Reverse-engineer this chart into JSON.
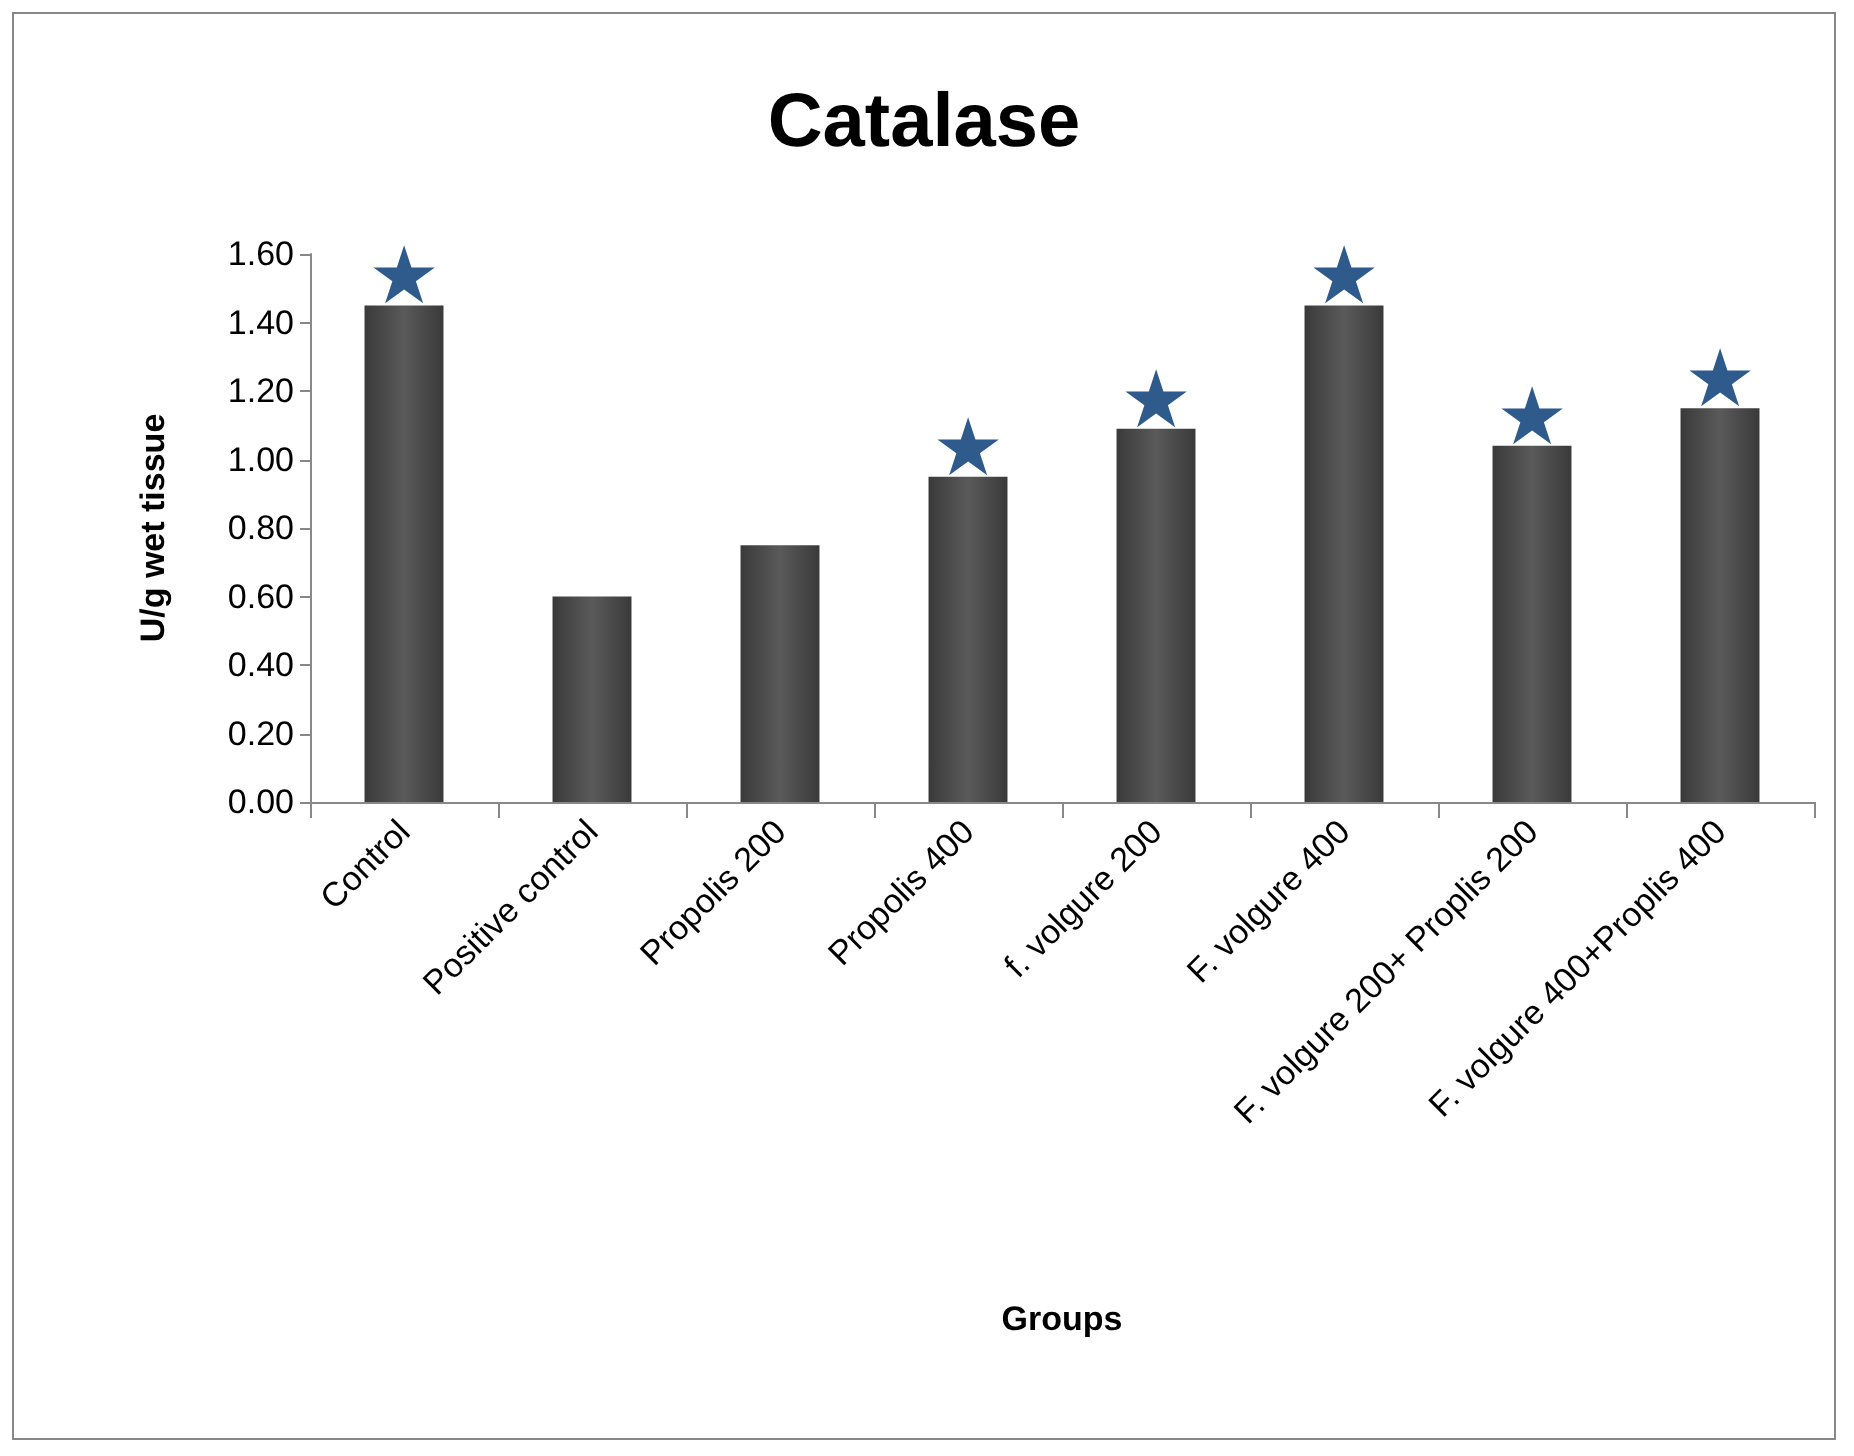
{
  "chart_data": {
    "type": "bar",
    "title": "Catalase",
    "xlabel": "Groups",
    "ylabel": "U/g wet tissue",
    "categories": [
      "Control",
      "Positive control",
      "Propolis 200",
      "Propolis 400",
      "f. volgure 200",
      "F. volgure 400",
      "F. volgure 200+ Proplis 200",
      "F. volgure 400+Proplis 400"
    ],
    "values": [
      1.45,
      0.6,
      0.75,
      0.95,
      1.09,
      1.45,
      1.04,
      1.15
    ],
    "color": "#5a5a5a",
    "ylim": [
      0,
      1.6
    ],
    "yticks": [
      {
        "value": 0,
        "label": "0.00"
      },
      {
        "value": 0.2,
        "label": "0.20"
      },
      {
        "value": 0.4,
        "label": "0.40"
      },
      {
        "value": 0.6,
        "label": "0.60"
      },
      {
        "value": 0.8,
        "label": "0.80"
      },
      {
        "value": 1.0,
        "label": "1.00"
      },
      {
        "value": 1.2,
        "label": "1.20"
      },
      {
        "value": 1.4,
        "label": "1.40"
      },
      {
        "value": 1.6,
        "label": "1.60"
      }
    ],
    "grid": false,
    "annotations": [
      {
        "text": "★",
        "x": "Control",
        "y": 1.45
      },
      {
        "text": "★",
        "x": "Propolis 400",
        "y": 0.95
      },
      {
        "text": "★",
        "x": "f. volgure 200",
        "y": 1.09
      },
      {
        "text": "★",
        "x": "F. volgure 400",
        "y": 1.45
      },
      {
        "text": "★",
        "x": "F. volgure 200+ Proplis 200",
        "y": 1.04
      },
      {
        "text": "★",
        "x": "F. volgure 400+Proplis 400",
        "y": 1.15
      }
    ]
  }
}
